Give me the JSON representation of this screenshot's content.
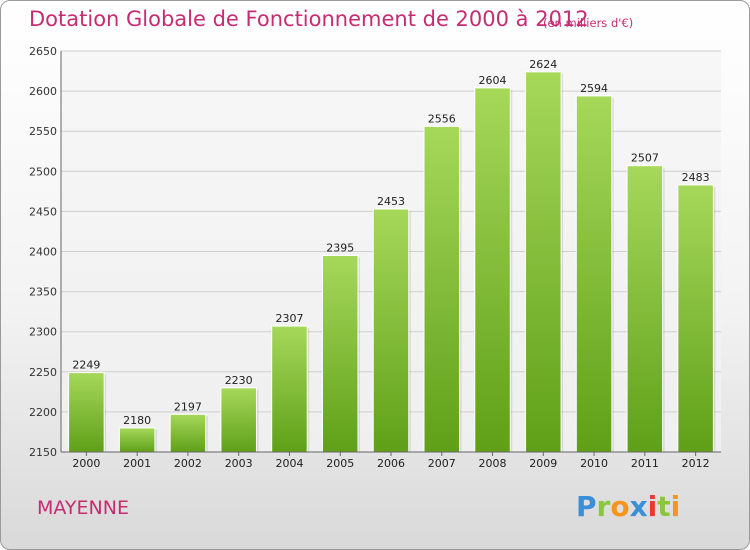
{
  "header": {
    "title": "Dotation Globale de Fonctionnement de 2000 à 2012",
    "subtitle": "(en milliers d'€)"
  },
  "footer": {
    "place": "MAYENNE",
    "logo": "Proxiti"
  },
  "colors": {
    "title": "#c72c72",
    "bar_top": "#a6d85a",
    "bar_bottom": "#5fa018",
    "grid": "#cfcfcf"
  },
  "chart_data": {
    "type": "bar",
    "title": "Dotation Globale de Fonctionnement de 2000 à 2012",
    "subtitle": "(en milliers d'€)",
    "categories": [
      "2000",
      "2001",
      "2002",
      "2003",
      "2004",
      "2005",
      "2006",
      "2007",
      "2008",
      "2009",
      "2010",
      "2011",
      "2012"
    ],
    "values": [
      2249,
      2180,
      2197,
      2230,
      2307,
      2395,
      2453,
      2556,
      2604,
      2624,
      2594,
      2507,
      2483
    ],
    "ylim": [
      2150,
      2650
    ],
    "yticks": [
      2150,
      2200,
      2250,
      2300,
      2350,
      2400,
      2450,
      2500,
      2550,
      2600,
      2650
    ],
    "grid": true,
    "legend": "none",
    "xlabel": "",
    "ylabel": ""
  }
}
